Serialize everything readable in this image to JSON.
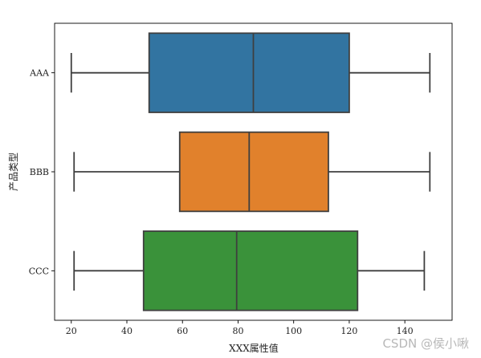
{
  "chart_data": {
    "type": "box",
    "orientation": "horizontal",
    "xlabel": "XXX属性值",
    "ylabel": "产品类型",
    "xlim": [
      14,
      157
    ],
    "xticks": [
      20,
      40,
      60,
      80,
      100,
      120,
      140
    ],
    "categories": [
      "AAA",
      "BBB",
      "CCC"
    ],
    "boxes": [
      {
        "category": "AAA",
        "whisker_low": 20,
        "q1": 48,
        "median": 85.5,
        "q3": 120,
        "whisker_high": 149,
        "color": "#3274a1"
      },
      {
        "category": "BBB",
        "whisker_low": 21,
        "q1": 59,
        "median": 84,
        "q3": 112.5,
        "whisker_high": 149,
        "color": "#e1812c"
      },
      {
        "category": "CCC",
        "whisker_low": 21,
        "q1": 46,
        "median": 79.5,
        "q3": 123,
        "whisker_high": 147,
        "color": "#3a923a"
      }
    ],
    "grid": false,
    "legend": "none"
  },
  "watermark": "CSDN @侯小啾"
}
